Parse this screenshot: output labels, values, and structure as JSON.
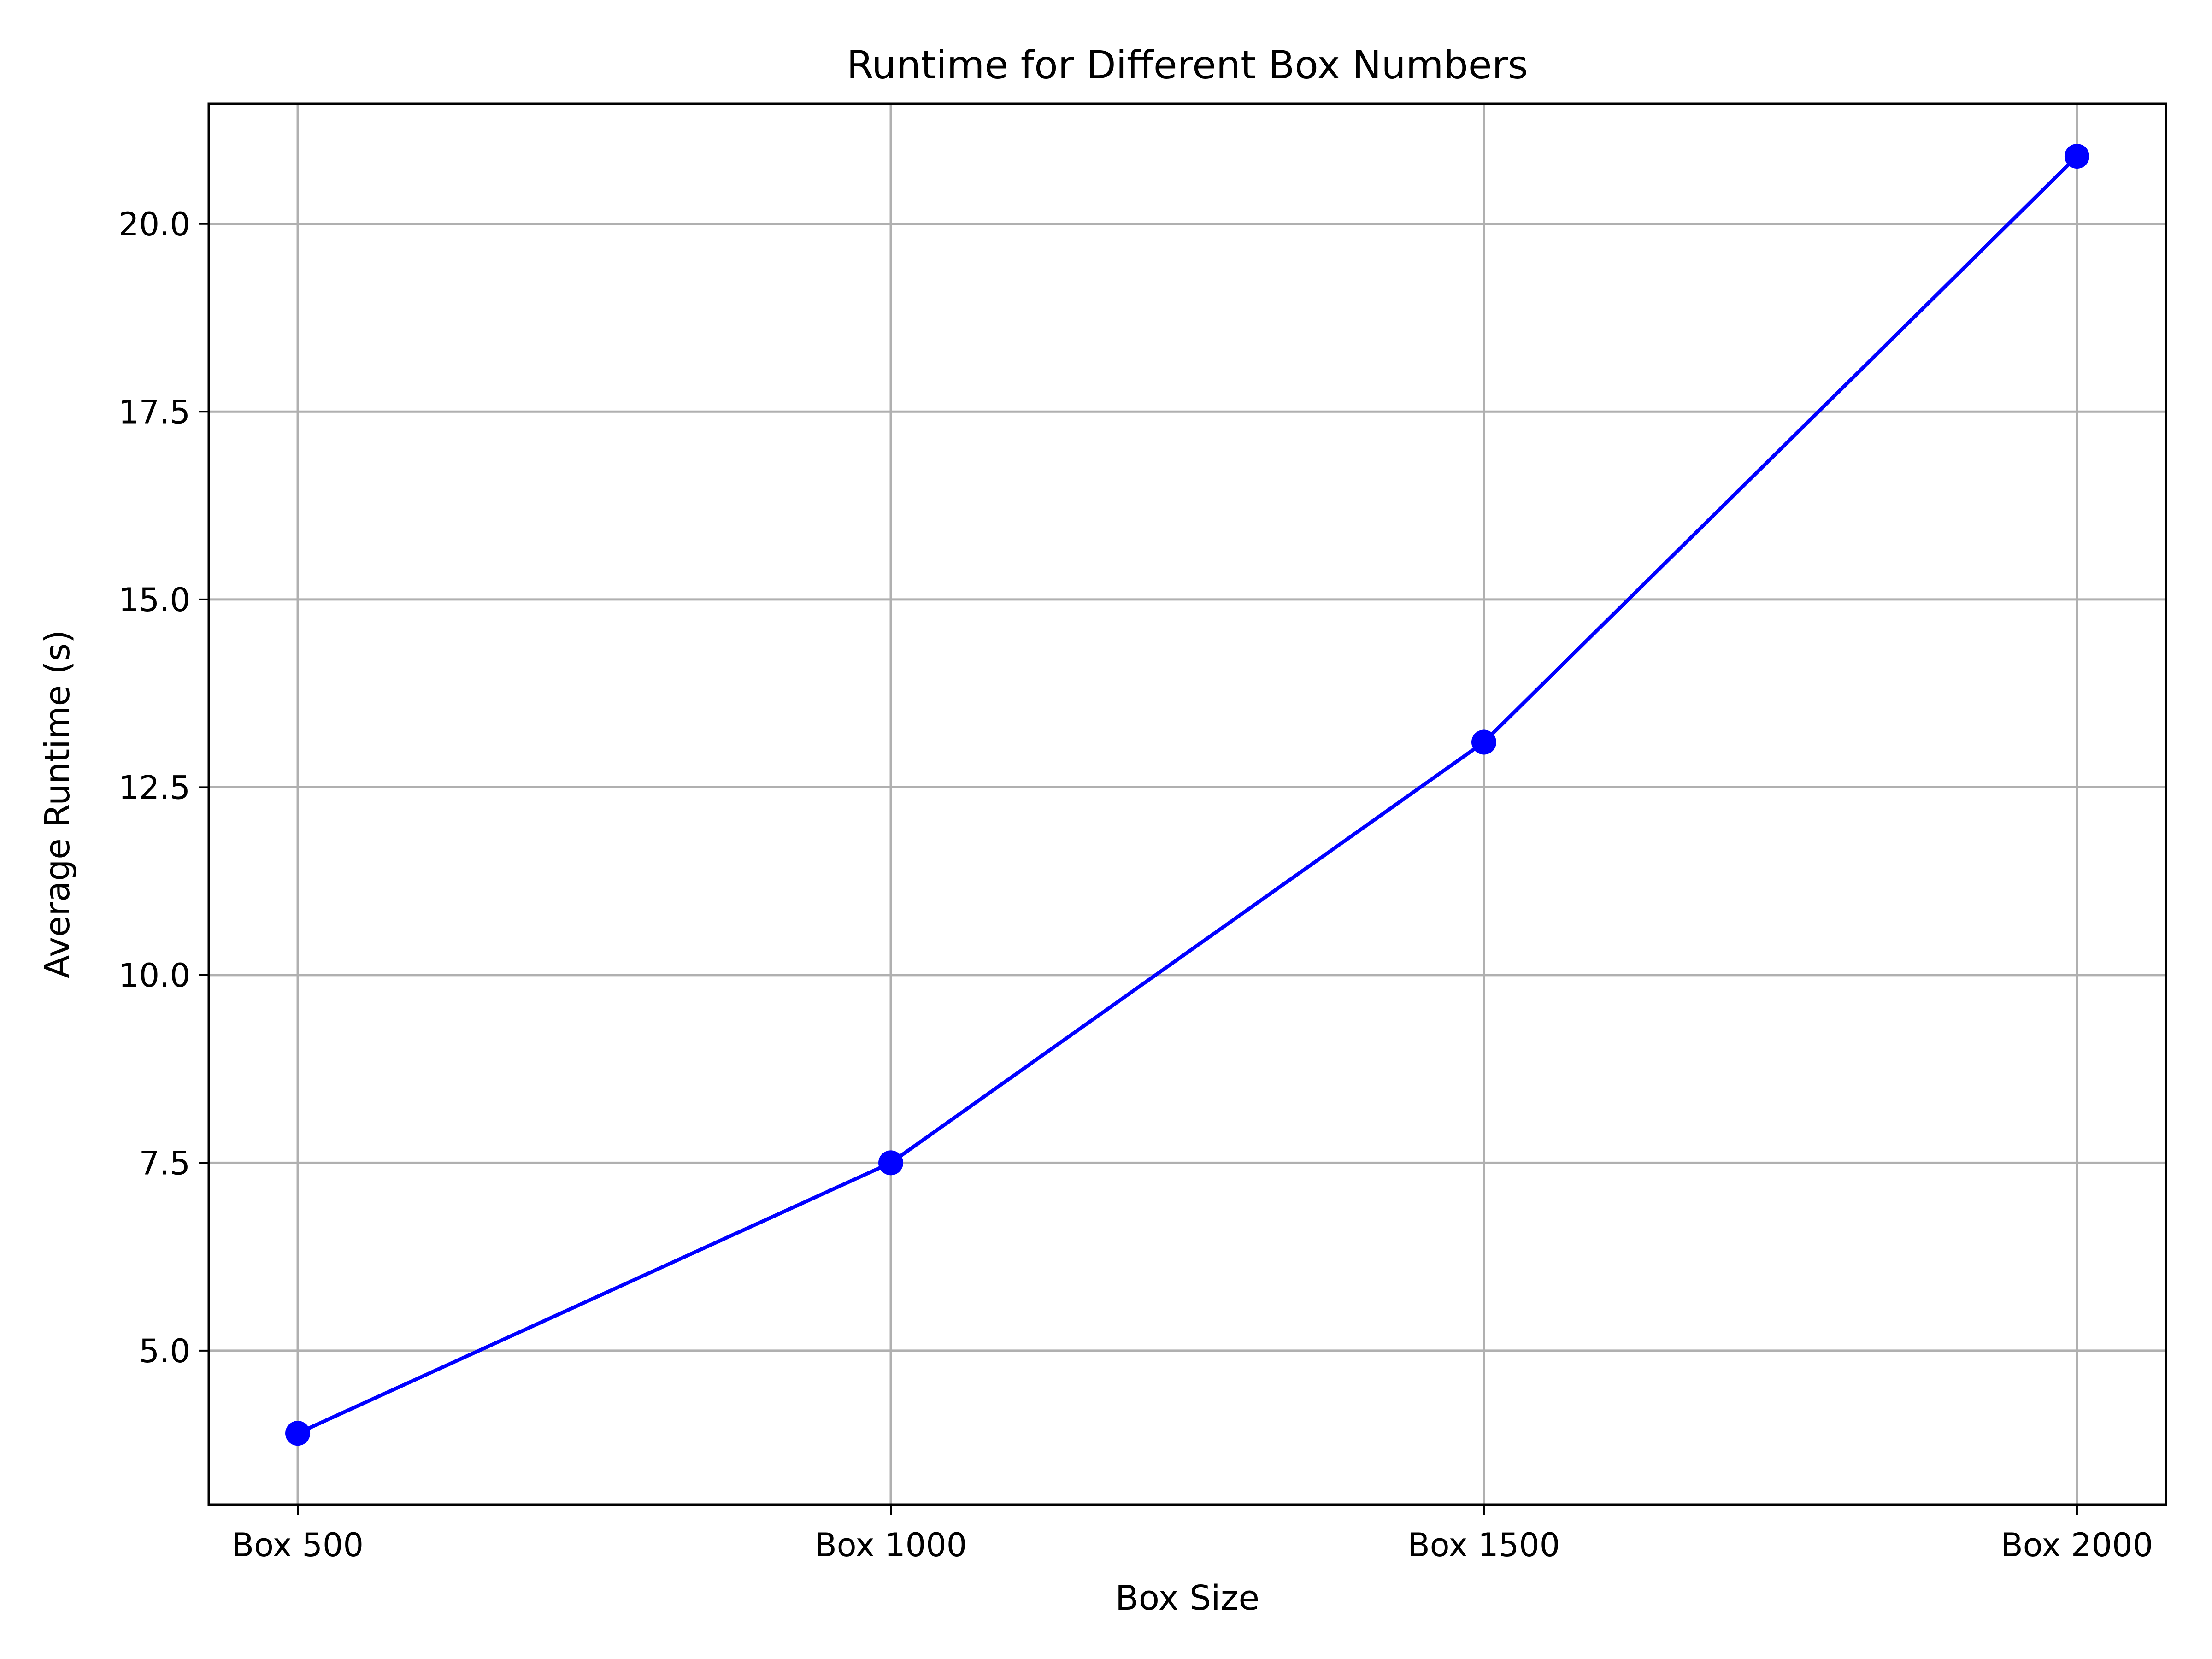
{
  "chart_data": {
    "type": "line",
    "title": "Runtime for Different Box Numbers",
    "xlabel": "Box Size",
    "ylabel": "Average Runtime (s)",
    "categories": [
      "Box 500",
      "Box 1000",
      "Box 1500",
      "Box 2000"
    ],
    "series": [
      {
        "values": [
          3.9,
          7.5,
          13.1,
          20.9
        ],
        "color": "#0000ff",
        "marker": "circle"
      }
    ],
    "ylim": [
      2.95,
      21.6
    ],
    "yticks": [
      5.0,
      7.5,
      10.0,
      12.5,
      15.0,
      17.5,
      20.0
    ],
    "ytick_labels": [
      "5.0",
      "7.5",
      "10.0",
      "12.5",
      "15.0",
      "17.5",
      "20.0"
    ],
    "grid": true,
    "legend": "none"
  }
}
